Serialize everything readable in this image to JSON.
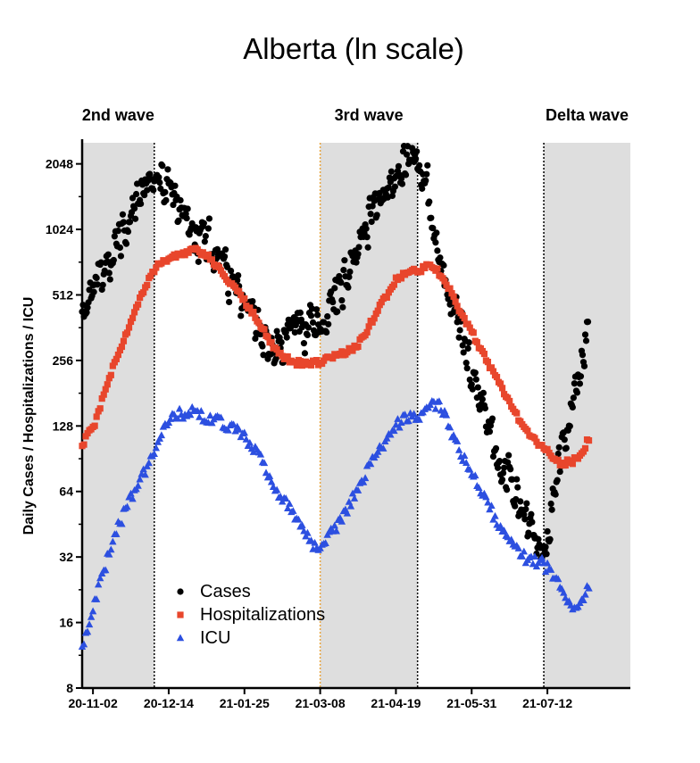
{
  "chart_data": {
    "type": "scatter",
    "title": "Alberta (ln scale)",
    "xlabel": "",
    "ylabel": "Daily Cases / Hospitalizations / ICU",
    "y_scale": "log2",
    "ylim": [
      8,
      2560
    ],
    "y_ticks": [
      8,
      16,
      32,
      64,
      128,
      256,
      512,
      1024,
      2048
    ],
    "xlim": [
      "2020-10-27",
      "2021-08-27"
    ],
    "x_ticks": [
      "2020-11-02",
      "2020-12-14",
      "2021-01-25",
      "2021-03-08",
      "2021-04-19",
      "2021-05-31",
      "2021-07-12"
    ],
    "x_tick_labels": [
      "20-11-02",
      "20-12-14",
      "21-01-25",
      "21-03-08",
      "21-04-19",
      "21-05-31",
      "21-07-12"
    ],
    "waves": [
      {
        "label": "2nd wave",
        "start": "2020-10-27",
        "end": "2020-12-06",
        "shaded": true
      },
      {
        "label": "",
        "start": "2020-12-06",
        "end": "2021-03-08",
        "shaded": false
      },
      {
        "label": "3rd wave",
        "start": "2021-03-08",
        "end": "2021-05-01",
        "shaded": true
      },
      {
        "label": "",
        "start": "2021-05-01",
        "end": "2021-07-10",
        "shaded": false
      },
      {
        "label": "Delta wave",
        "start": "2021-07-10",
        "end": "2021-08-27",
        "shaded": true
      }
    ],
    "dividers": [
      {
        "date": "2020-12-06",
        "color": "#000000"
      },
      {
        "date": "2021-03-08",
        "color": "#e8a33c"
      },
      {
        "date": "2021-05-01",
        "color": "#000000"
      },
      {
        "date": "2021-07-10",
        "color": "#000000"
      }
    ],
    "legend": {
      "placement": "bottom-left"
    },
    "series": [
      {
        "name": "Cases",
        "marker": "circle",
        "color": "#000000",
        "anchors": [
          [
            "2020-10-27",
            420
          ],
          [
            "2020-11-02",
            540
          ],
          [
            "2020-11-10",
            720
          ],
          [
            "2020-11-18",
            960
          ],
          [
            "2020-11-26",
            1350
          ],
          [
            "2020-12-02",
            1700
          ],
          [
            "2020-12-08",
            1850
          ],
          [
            "2020-12-15",
            1500
          ],
          [
            "2020-12-22",
            1100
          ],
          [
            "2020-12-29",
            900
          ],
          [
            "2021-01-05",
            870
          ],
          [
            "2021-01-12",
            700
          ],
          [
            "2021-01-19",
            560
          ],
          [
            "2021-01-26",
            430
          ],
          [
            "2021-02-02",
            340
          ],
          [
            "2021-02-09",
            290
          ],
          [
            "2021-02-16",
            300
          ],
          [
            "2021-02-23",
            360
          ],
          [
            "2021-03-01",
            370
          ],
          [
            "2021-03-08",
            380
          ],
          [
            "2021-03-15",
            460
          ],
          [
            "2021-03-22",
            620
          ],
          [
            "2021-03-29",
            820
          ],
          [
            "2021-04-05",
            1150
          ],
          [
            "2021-04-12",
            1500
          ],
          [
            "2021-04-19",
            1800
          ],
          [
            "2021-04-26",
            2100
          ],
          [
            "2021-05-01",
            2000
          ],
          [
            "2021-05-06",
            1550
          ],
          [
            "2021-05-11",
            1000
          ],
          [
            "2021-05-16",
            650
          ],
          [
            "2021-05-21",
            420
          ],
          [
            "2021-05-26",
            310
          ],
          [
            "2021-05-31",
            220
          ],
          [
            "2021-06-07",
            150
          ],
          [
            "2021-06-14",
            95
          ],
          [
            "2021-06-21",
            70
          ],
          [
            "2021-06-28",
            55
          ],
          [
            "2021-07-05",
            38
          ],
          [
            "2021-07-10",
            36
          ],
          [
            "2021-07-14",
            48
          ],
          [
            "2021-07-18",
            85
          ],
          [
            "2021-07-22",
            120
          ],
          [
            "2021-07-26",
            170
          ],
          [
            "2021-07-30",
            220
          ],
          [
            "2021-08-03",
            400
          ]
        ]
      },
      {
        "name": "Hospitalizations",
        "marker": "square",
        "color": "#e8462c",
        "anchors": [
          [
            "2020-10-27",
            104
          ],
          [
            "2020-11-03",
            132
          ],
          [
            "2020-11-10",
            200
          ],
          [
            "2020-11-17",
            290
          ],
          [
            "2020-11-24",
            400
          ],
          [
            "2020-12-01",
            560
          ],
          [
            "2020-12-08",
            700
          ],
          [
            "2020-12-15",
            760
          ],
          [
            "2020-12-22",
            800
          ],
          [
            "2020-12-29",
            820
          ],
          [
            "2021-01-05",
            770
          ],
          [
            "2021-01-12",
            660
          ],
          [
            "2021-01-19",
            560
          ],
          [
            "2021-01-26",
            470
          ],
          [
            "2021-02-02",
            380
          ],
          [
            "2021-02-09",
            305
          ],
          [
            "2021-02-16",
            265
          ],
          [
            "2021-02-23",
            250
          ],
          [
            "2021-03-01",
            248
          ],
          [
            "2021-03-08",
            250
          ],
          [
            "2021-03-15",
            265
          ],
          [
            "2021-03-22",
            280
          ],
          [
            "2021-03-29",
            300
          ],
          [
            "2021-04-05",
            380
          ],
          [
            "2021-04-12",
            480
          ],
          [
            "2021-04-19",
            600
          ],
          [
            "2021-04-26",
            650
          ],
          [
            "2021-05-01",
            660
          ],
          [
            "2021-05-06",
            690
          ],
          [
            "2021-05-11",
            680
          ],
          [
            "2021-05-16",
            590
          ],
          [
            "2021-05-21",
            500
          ],
          [
            "2021-05-26",
            410
          ],
          [
            "2021-05-31",
            345
          ],
          [
            "2021-06-07",
            270
          ],
          [
            "2021-06-14",
            210
          ],
          [
            "2021-06-21",
            165
          ],
          [
            "2021-06-28",
            130
          ],
          [
            "2021-07-05",
            110
          ],
          [
            "2021-07-12",
            98
          ],
          [
            "2021-07-19",
            86
          ],
          [
            "2021-07-26",
            88
          ],
          [
            "2021-07-31",
            96
          ],
          [
            "2021-08-04",
            112
          ]
        ]
      },
      {
        "name": "ICU",
        "marker": "triangle",
        "color": "#2c4fe0",
        "anchors": [
          [
            "2020-10-27",
            12
          ],
          [
            "2020-11-01",
            17
          ],
          [
            "2020-11-07",
            26
          ],
          [
            "2020-11-14",
            40
          ],
          [
            "2020-11-21",
            55
          ],
          [
            "2020-11-28",
            70
          ],
          [
            "2020-12-05",
            95
          ],
          [
            "2020-12-12",
            130
          ],
          [
            "2020-12-19",
            145
          ],
          [
            "2020-12-26",
            148
          ],
          [
            "2021-01-02",
            142
          ],
          [
            "2021-01-09",
            138
          ],
          [
            "2021-01-16",
            128
          ],
          [
            "2021-01-23",
            118
          ],
          [
            "2021-01-30",
            100
          ],
          [
            "2021-02-06",
            82
          ],
          [
            "2021-02-13",
            62
          ],
          [
            "2021-02-20",
            52
          ],
          [
            "2021-02-27",
            42
          ],
          [
            "2021-03-06",
            35
          ],
          [
            "2021-03-13",
            40
          ],
          [
            "2021-03-20",
            48
          ],
          [
            "2021-03-27",
            62
          ],
          [
            "2021-04-03",
            80
          ],
          [
            "2021-04-10",
            100
          ],
          [
            "2021-04-17",
            125
          ],
          [
            "2021-04-24",
            140
          ],
          [
            "2021-05-01",
            140
          ],
          [
            "2021-05-08",
            165
          ],
          [
            "2021-05-13",
            160
          ],
          [
            "2021-05-18",
            130
          ],
          [
            "2021-05-23",
            105
          ],
          [
            "2021-05-28",
            85
          ],
          [
            "2021-06-04",
            68
          ],
          [
            "2021-06-11",
            52
          ],
          [
            "2021-06-18",
            40
          ],
          [
            "2021-06-25",
            34
          ],
          [
            "2021-07-02",
            31
          ],
          [
            "2021-07-09",
            30
          ],
          [
            "2021-07-16",
            26
          ],
          [
            "2021-07-23",
            21
          ],
          [
            "2021-07-28",
            18
          ],
          [
            "2021-08-02",
            22
          ],
          [
            "2021-08-04",
            24
          ]
        ]
      }
    ]
  }
}
